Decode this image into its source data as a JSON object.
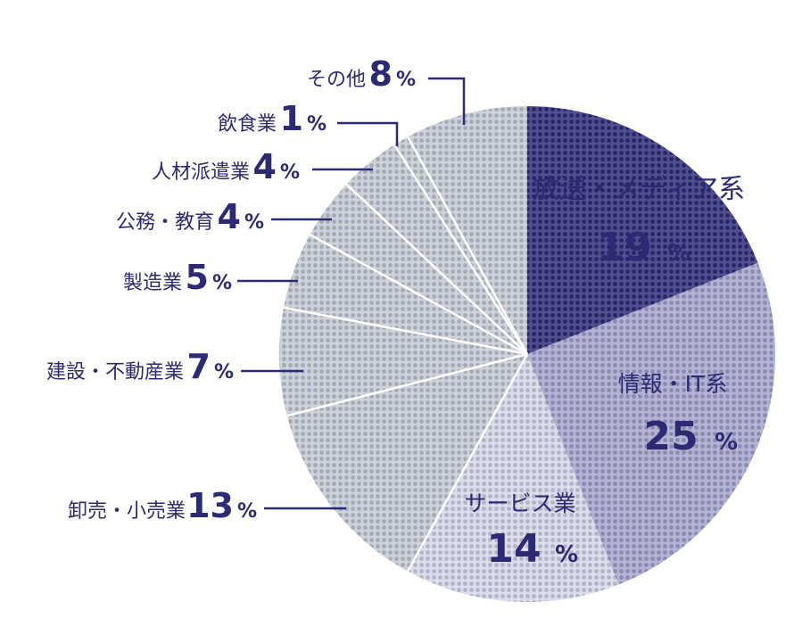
{
  "chart_data": {
    "type": "pie",
    "percent_symbol": "%",
    "slices": [
      {
        "label": "放送・メディア系",
        "value": 19,
        "color": "#2f2d7a"
      },
      {
        "label": "情報・IT系",
        "value": 25,
        "color": "#a4a6cf"
      },
      {
        "label": "サービス業",
        "value": 14,
        "color": "#d5d7e9"
      },
      {
        "label": "卸売・小売業",
        "value": 13,
        "color": "#c4cbd5"
      },
      {
        "label": "建設・不動産業",
        "value": 7,
        "color": "#c4cbd5"
      },
      {
        "label": "製造業",
        "value": 5,
        "color": "#c4cbd5"
      },
      {
        "label": "公務・教育",
        "value": 4,
        "color": "#c4cbd5"
      },
      {
        "label": "人材派遣業",
        "value": 4,
        "color": "#c4cbd5"
      },
      {
        "label": "飲食業",
        "value": 1,
        "color": "#c4cbd5"
      },
      {
        "label": "その他",
        "value": 8,
        "color": "#c4cbd5"
      }
    ]
  }
}
